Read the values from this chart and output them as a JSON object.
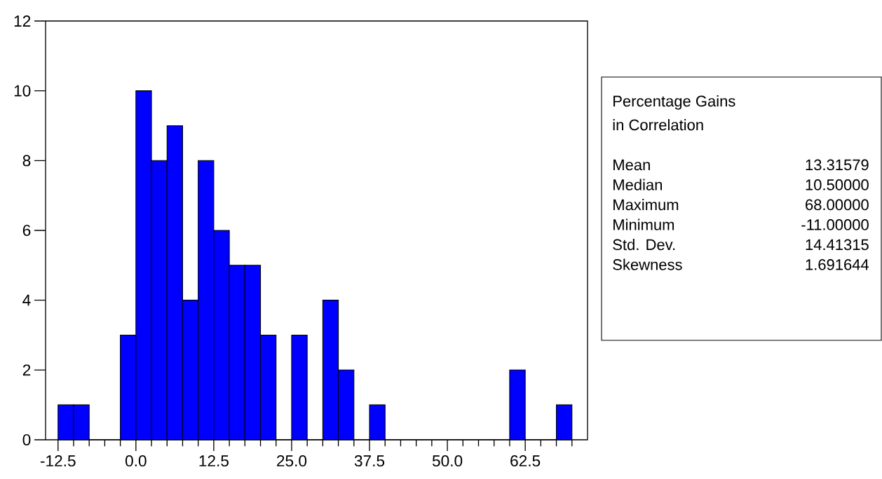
{
  "chart_data": {
    "type": "histogram",
    "bins": [
      -12.5,
      -10,
      -7.5,
      -5,
      -2.5,
      0,
      2.5,
      5,
      7.5,
      10,
      12.5,
      15,
      17.5,
      20,
      22.5,
      25,
      27.5,
      30,
      32.5,
      35,
      37.5,
      40,
      42.5,
      45,
      47.5,
      50,
      52.5,
      55,
      57.5,
      60,
      62.5,
      65,
      67.5,
      70
    ],
    "values": [
      1,
      1,
      0,
      0,
      3,
      10,
      8,
      9,
      4,
      8,
      6,
      5,
      5,
      3,
      0,
      3,
      0,
      4,
      2,
      0,
      1,
      0,
      0,
      0,
      0,
      0,
      0,
      0,
      0,
      2,
      0,
      0,
      1
    ],
    "color": "#0000ff",
    "xlim": [
      -14.5,
      72.5
    ],
    "xticks": [
      {
        "value": -12.5,
        "label": "-12.5"
      },
      {
        "value": -10,
        "label": null
      },
      {
        "value": -7.5,
        "label": null
      },
      {
        "value": -5,
        "label": null
      },
      {
        "value": -2.5,
        "label": null
      },
      {
        "value": 0,
        "label": "0.0"
      },
      {
        "value": 2.5,
        "label": null
      },
      {
        "value": 5,
        "label": null
      },
      {
        "value": 7.5,
        "label": null
      },
      {
        "value": 10,
        "label": null
      },
      {
        "value": 12.5,
        "label": "12.5"
      },
      {
        "value": 15,
        "label": null
      },
      {
        "value": 17.5,
        "label": null
      },
      {
        "value": 20,
        "label": null
      },
      {
        "value": 22.5,
        "label": null
      },
      {
        "value": 25,
        "label": "25.0"
      },
      {
        "value": 27.5,
        "label": null
      },
      {
        "value": 30,
        "label": null
      },
      {
        "value": 32.5,
        "label": null
      },
      {
        "value": 35,
        "label": null
      },
      {
        "value": 37.5,
        "label": "37.5"
      },
      {
        "value": 40,
        "label": null
      },
      {
        "value": 42.5,
        "label": null
      },
      {
        "value": 45,
        "label": null
      },
      {
        "value": 47.5,
        "label": null
      },
      {
        "value": 50,
        "label": "50.0"
      },
      {
        "value": 52.5,
        "label": null
      },
      {
        "value": 55,
        "label": null
      },
      {
        "value": 57.5,
        "label": null
      },
      {
        "value": 60,
        "label": null
      },
      {
        "value": 62.5,
        "label": "62.5"
      },
      {
        "value": 65,
        "label": null
      },
      {
        "value": 67.5,
        "label": null
      },
      {
        "value": 70,
        "label": null
      }
    ],
    "ylim": [
      0,
      12
    ],
    "yticks": [
      0,
      2,
      4,
      6,
      8,
      10,
      12
    ],
    "grid": false,
    "annotations": [
      "Percentage Gains",
      "in Correlation",
      "Mean",
      "13.31579",
      "Median",
      "10.50000",
      "Maximum",
      "68.00000",
      "Minimum",
      "-11.00000",
      "Std. Dev.",
      "14.41315",
      "Skewness",
      "1.691644"
    ]
  }
}
